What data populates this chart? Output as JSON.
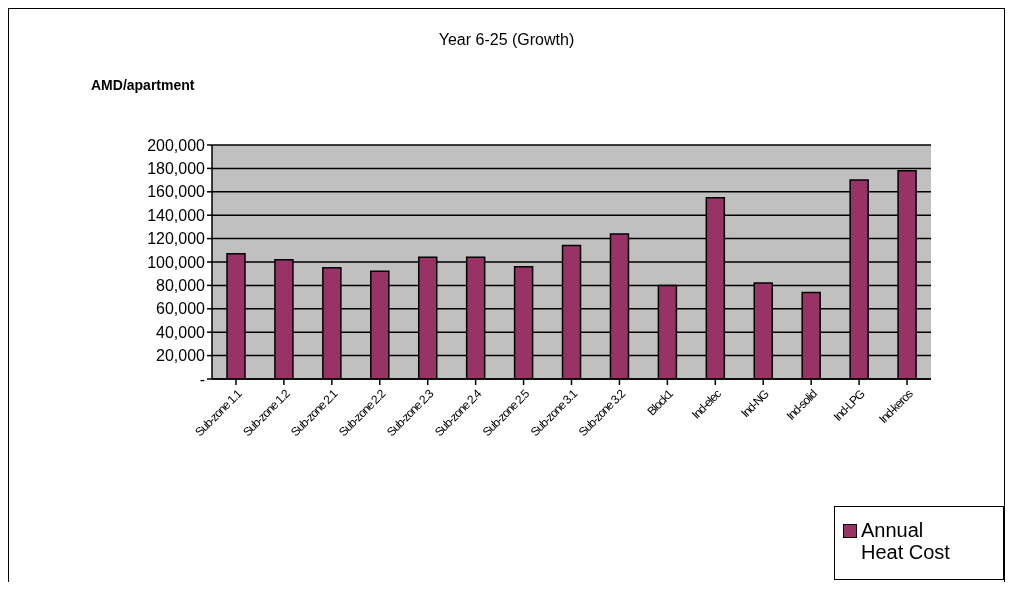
{
  "chart_data": {
    "type": "bar",
    "title": "Year 6-25 (Growth)",
    "ylabel": "AMD/apartment",
    "categories": [
      "Sub-zone 1.1",
      "Sub-zone 1.2",
      "Sub-zone 2.1",
      "Sub-zone 2.2",
      "Sub-zone 2.3",
      "Sub-zone 2.4",
      "Sub-zone 2.5",
      "Sub-zone 3.1",
      "Sub-zone 3.2",
      "Block1",
      "Ind-elec",
      "Ind-NG",
      "Ind-solid",
      "Ind-LPG",
      "Ind-keros"
    ],
    "series": [
      {
        "name": "Annual Heat Cost",
        "color": "#993366",
        "values": [
          107000,
          102000,
          95000,
          92000,
          104000,
          104000,
          96000,
          114000,
          124000,
          80000,
          155000,
          82000,
          74000,
          170000,
          178000
        ]
      }
    ],
    "ylim": [
      0,
      200000
    ],
    "yticks": [
      {
        "value": 0,
        "label": "-"
      },
      {
        "value": 20000,
        "label": "20,000"
      },
      {
        "value": 40000,
        "label": "40,000"
      },
      {
        "value": 60000,
        "label": "60,000"
      },
      {
        "value": 80000,
        "label": "80,000"
      },
      {
        "value": 100000,
        "label": "100,000"
      },
      {
        "value": 120000,
        "label": "120,000"
      },
      {
        "value": 140000,
        "label": "140,000"
      },
      {
        "value": 160000,
        "label": "160,000"
      },
      {
        "value": 180000,
        "label": "180,000"
      },
      {
        "value": 200000,
        "label": "200,000"
      }
    ],
    "grid": "y",
    "legend": "bottom right"
  }
}
